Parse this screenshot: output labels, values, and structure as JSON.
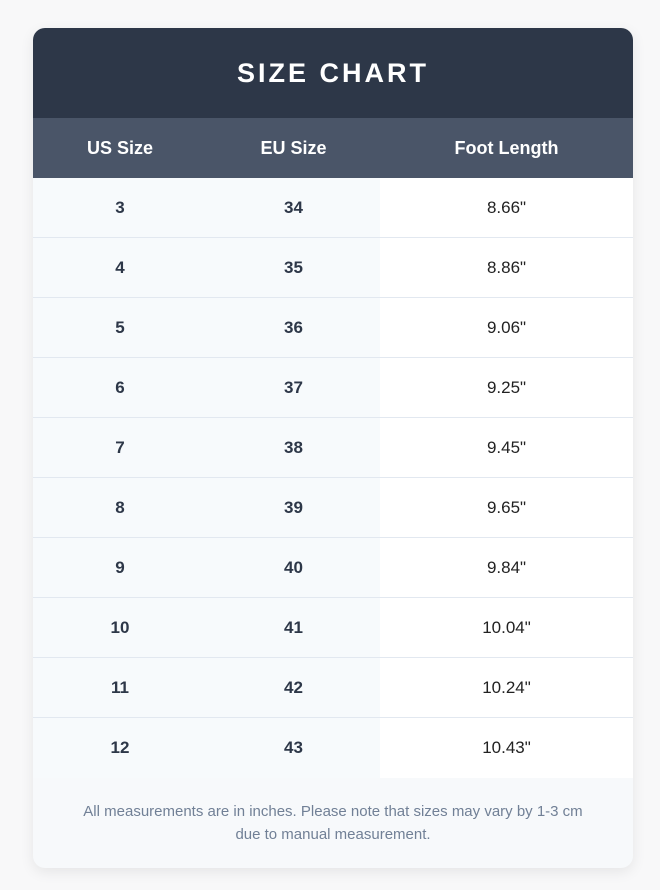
{
  "title": "SIZE CHART",
  "columns": [
    "US Size",
    "EU Size",
    "Foot Length"
  ],
  "rows": [
    [
      "3",
      "34",
      "8.66\""
    ],
    [
      "4",
      "35",
      "8.86\""
    ],
    [
      "5",
      "36",
      "9.06\""
    ],
    [
      "6",
      "37",
      "9.25\""
    ],
    [
      "7",
      "38",
      "9.45\""
    ],
    [
      "8",
      "39",
      "9.65\""
    ],
    [
      "9",
      "40",
      "9.84\""
    ],
    [
      "10",
      "41",
      "10.04\""
    ],
    [
      "11",
      "42",
      "10.24\""
    ],
    [
      "12",
      "43",
      "10.43\""
    ]
  ],
  "note": "All measurements are in inches. Please note that sizes may vary by 1-3 cm due to manual measurement.",
  "colors": {
    "title_bg": "#2d3748",
    "header_bg": "#4a5568"
  }
}
